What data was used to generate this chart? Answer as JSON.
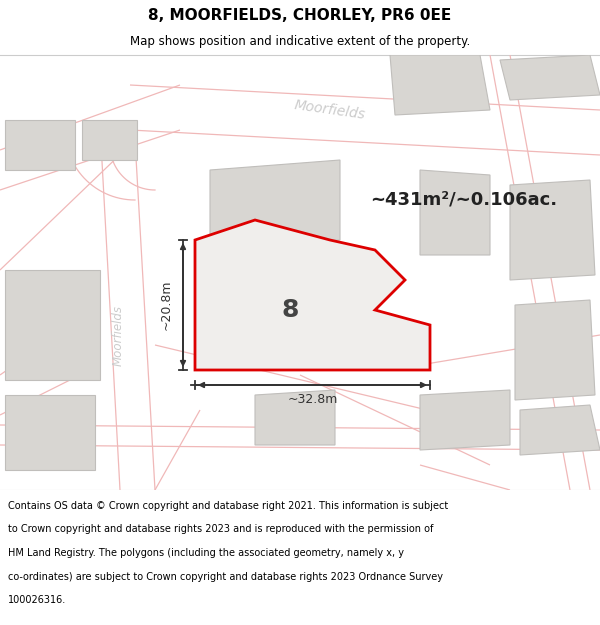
{
  "title": "8, MOORFIELDS, CHORLEY, PR6 0EE",
  "subtitle": "Map shows position and indicative extent of the property.",
  "footer": "Contains OS data © Crown copyright and database right 2021. This information is subject to Crown copyright and database rights 2023 and is reproduced with the permission of HM Land Registry. The polygons (including the associated geometry, namely x, y co-ordinates) are subject to Crown copyright and database rights 2023 Ordnance Survey 100026316.",
  "area_label": "~431m²/~0.106ac.",
  "plot_number": "8",
  "dim_width": "~32.8m",
  "dim_height": "~20.8m",
  "map_bg": "#ffffff",
  "plot_fill": "#f0eeec",
  "plot_edge_color": "#dd0000",
  "road_label_moorfields_upper": "Moorfields",
  "road_label_moorfields_left": "Moorfields",
  "road_line_color": "#f0b8b8",
  "bldg_fill": "#d8d6d2",
  "bldg_edge": "#c0bebb",
  "dim_color": "#333333",
  "title_color": "#000000",
  "footer_color": "#000000",
  "road_label_color": "#cccccc"
}
